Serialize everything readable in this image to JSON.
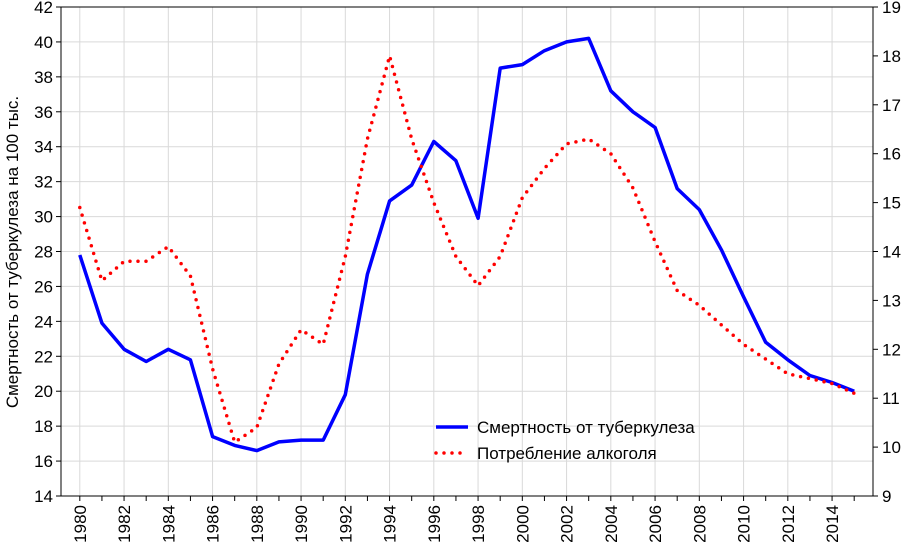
{
  "chart_data": {
    "type": "line",
    "title": "",
    "xlabel": "",
    "ylabel": "Смертность от туберкулеза на 100 тыс.",
    "ylim": [
      14,
      42
    ],
    "y2lim": [
      9,
      19
    ],
    "grid": true,
    "legend_position": "bottom-right",
    "x": [
      1980,
      1981,
      1982,
      1983,
      1984,
      1985,
      1986,
      1987,
      1988,
      1989,
      1990,
      1991,
      1992,
      1993,
      1994,
      1995,
      1996,
      1997,
      1998,
      1999,
      2000,
      2001,
      2002,
      2003,
      2004,
      2005,
      2006,
      2007,
      2008,
      2009,
      2010,
      2011,
      2012,
      2013,
      2014,
      2015
    ],
    "x_tick_labels": [
      "1980",
      "1982",
      "1984",
      "1986",
      "1988",
      "1990",
      "1992",
      "1994",
      "1996",
      "1998",
      "2000",
      "2002",
      "2004",
      "2006",
      "2008",
      "2010",
      "2012",
      "2014"
    ],
    "y_tick_labels": [
      "14",
      "16",
      "18",
      "20",
      "22",
      "24",
      "26",
      "28",
      "30",
      "32",
      "34",
      "36",
      "38",
      "40",
      "42"
    ],
    "y2_tick_labels": [
      "9",
      "10",
      "11",
      "12",
      "13",
      "14",
      "15",
      "16",
      "17",
      "18",
      "19"
    ],
    "series": [
      {
        "name": "Смертность от туберкулеза",
        "axis": "left",
        "color": "#0000ff",
        "style": "solid",
        "values": [
          27.8,
          23.9,
          22.4,
          21.7,
          22.4,
          21.8,
          17.4,
          16.9,
          16.6,
          17.1,
          17.2,
          17.2,
          19.8,
          26.7,
          30.9,
          31.8,
          34.3,
          33.2,
          29.9,
          38.5,
          38.7,
          39.5,
          40.0,
          40.2,
          37.2,
          36.0,
          35.1,
          31.6,
          30.4,
          28.1,
          25.4,
          22.8,
          21.8,
          20.9,
          20.5,
          20.0
        ]
      },
      {
        "name": "Потребление алкоголя",
        "axis": "right",
        "color": "#ff0000",
        "style": "dotted",
        "values": [
          14.9,
          13.4,
          13.8,
          13.8,
          14.1,
          13.5,
          11.6,
          10.1,
          10.4,
          11.7,
          12.4,
          12.1,
          13.9,
          16.3,
          18.0,
          16.3,
          15.0,
          13.9,
          13.3,
          13.9,
          15.1,
          15.7,
          16.2,
          16.3,
          16.0,
          15.3,
          14.2,
          13.2,
          12.9,
          12.5,
          12.1,
          11.8,
          11.5,
          11.4,
          11.3,
          11.1
        ]
      }
    ]
  }
}
